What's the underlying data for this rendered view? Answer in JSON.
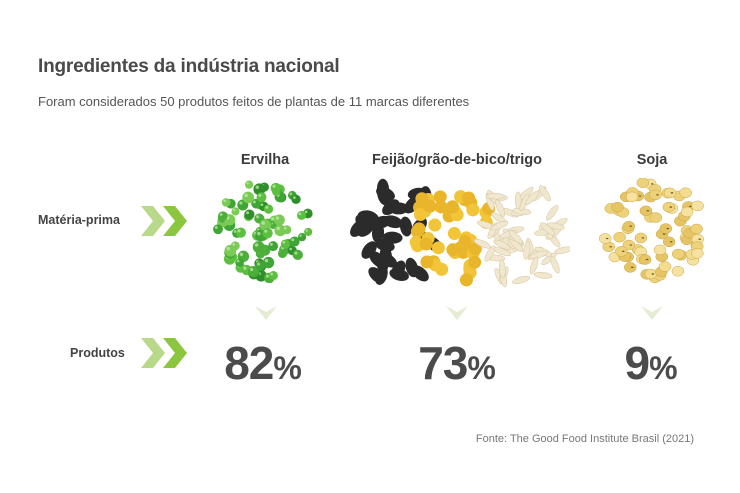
{
  "title": "Ingredientes da indústria nacional",
  "subtitle": "Foram considerados 50 produtos feitos de plantas de 11 marcas diferentes",
  "row_labels": {
    "raw_material": "Matéria-prima",
    "products": "Produtos"
  },
  "colors": {
    "arrow_light": "#b9d98a",
    "arrow_dark": "#8cc63f",
    "down_arrow": "#e4ecd2",
    "pea": "#4caf3a",
    "soy": "#eed27a",
    "bean": "#2b2b2b",
    "chickpea": "#f2c438",
    "wheat": "#f1e7cf",
    "text_dark": "#4b4b4b"
  },
  "chart_data": {
    "type": "table",
    "categories": [
      "Ervilha",
      "Feijão/grão-de-bico/trigo",
      "Soja"
    ],
    "values": [
      82,
      73,
      9
    ],
    "unit": "%",
    "images": [
      "peas",
      "beans-chickpeas-wheat",
      "soybeans"
    ]
  },
  "pct_labels": [
    {
      "num": "82",
      "sym": "%"
    },
    {
      "num": "73",
      "sym": "%"
    },
    {
      "num": "9",
      "sym": "%"
    }
  ],
  "source": "Fonte: The Good Food Institute Brasil (2021)"
}
